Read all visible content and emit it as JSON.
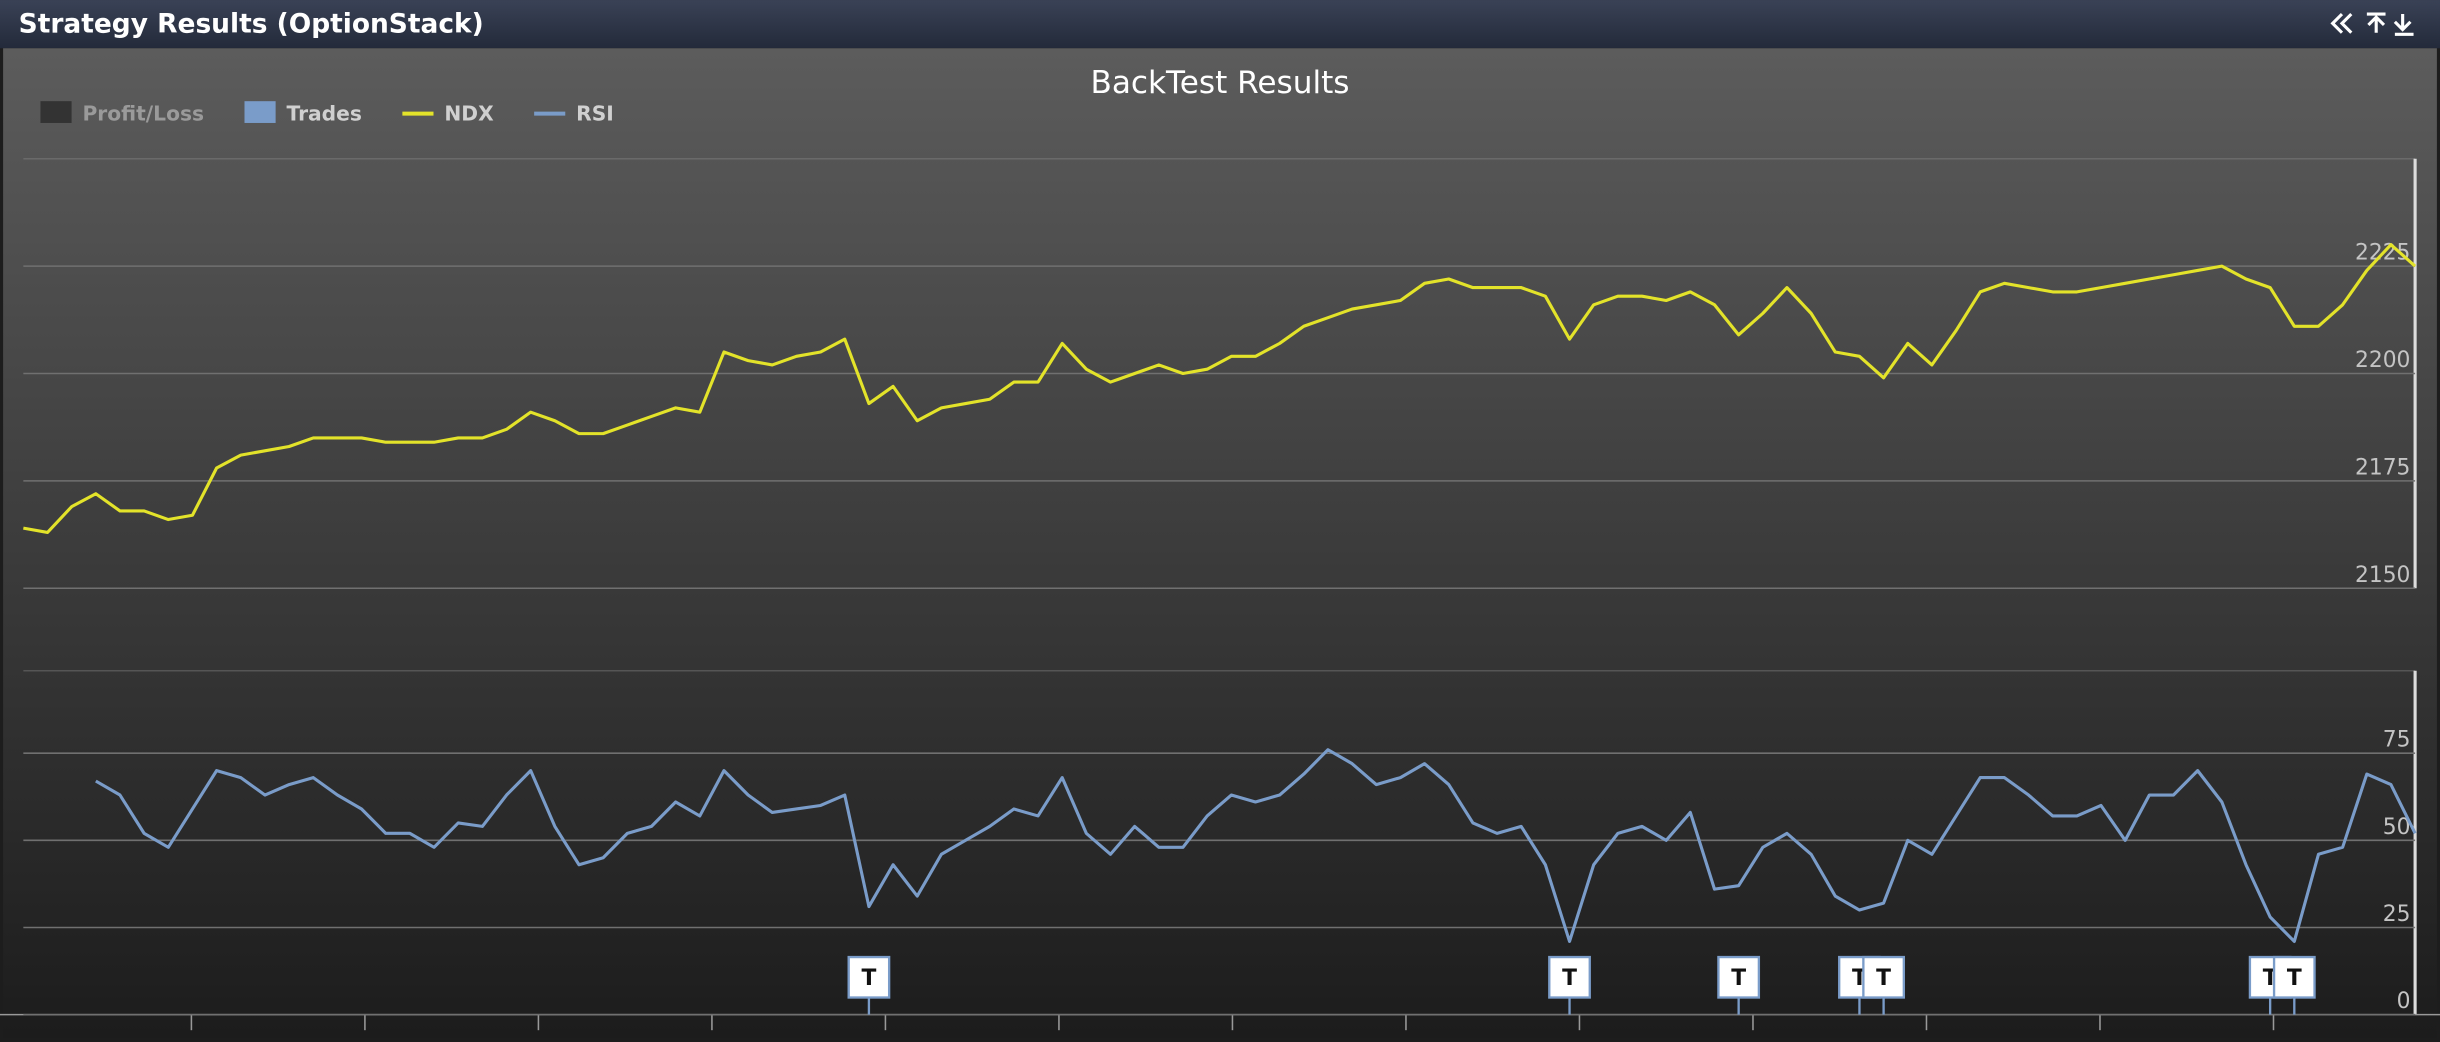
{
  "header": {
    "title": "Strategy Results (OptionStack)"
  },
  "chart_data": {
    "type": "line",
    "title": "BackTest Results",
    "legend": "top-left",
    "grid": true,
    "ylim": [
      2150,
      2250
    ],
    "yticks": [
      2150,
      2175,
      2200,
      2225
    ],
    "y2lim": [
      0,
      100
    ],
    "y2ticks": [
      0,
      25,
      50,
      75
    ],
    "series": [
      {
        "name": "Profit/Loss",
        "color": "#333333"
      },
      {
        "name": "Trades",
        "color": "#7a9cc9",
        "flag_label": "T",
        "flags": [
          35,
          64,
          71,
          76,
          77,
          93,
          94
        ]
      },
      {
        "name": "NDX",
        "color": "#e3e32a",
        "values": [
          2164,
          2163,
          2169,
          2172,
          2168,
          2168,
          2166,
          2167,
          2178,
          2181,
          2182,
          2183,
          2185,
          2185,
          2185,
          2184,
          2184,
          2184,
          2185,
          2185,
          2187,
          2191,
          2189,
          2186,
          2186,
          2188,
          2190,
          2192,
          2191,
          2205,
          2203,
          2202,
          2204,
          2205,
          2208,
          2193,
          2197,
          2189,
          2192,
          2193,
          2194,
          2198,
          2198,
          2207,
          2201,
          2198,
          2200,
          2202,
          2200,
          2201,
          2204,
          2204,
          2207,
          2211,
          2213,
          2215,
          2216,
          2217,
          2221,
          2222,
          2220,
          2220,
          2220,
          2218,
          2208,
          2216,
          2218,
          2218,
          2217,
          2219,
          2216,
          2209,
          2214,
          2220,
          2214,
          2205,
          2204,
          2199,
          2207,
          2202,
          2210,
          2219,
          2221,
          2220,
          2219,
          2219,
          2220,
          2221,
          2222,
          2223,
          2224,
          2225,
          2222,
          2220,
          2211,
          2211,
          2216,
          2224,
          2230,
          2225
        ]
      },
      {
        "name": "RSI",
        "color": "#7a9cc9",
        "axis": "y2",
        "values": [
          null,
          null,
          null,
          67,
          63,
          52,
          48,
          59,
          70,
          68,
          63,
          66,
          68,
          63,
          59,
          52,
          52,
          48,
          55,
          54,
          63,
          70,
          54,
          43,
          45,
          52,
          54,
          61,
          57,
          70,
          63,
          58,
          59,
          60,
          63,
          31,
          43,
          34,
          46,
          50,
          54,
          59,
          57,
          68,
          52,
          46,
          54,
          48,
          48,
          57,
          63,
          61,
          63,
          69,
          76,
          72,
          66,
          68,
          72,
          66,
          55,
          52,
          54,
          43,
          21,
          43,
          52,
          54,
          50,
          58,
          36,
          37,
          48,
          52,
          46,
          34,
          30,
          32,
          50,
          46,
          57,
          68,
          68,
          63,
          57,
          57,
          60,
          50,
          63,
          63,
          70,
          61,
          43,
          28,
          21,
          46,
          48,
          69,
          66,
          52
        ]
      }
    ]
  }
}
